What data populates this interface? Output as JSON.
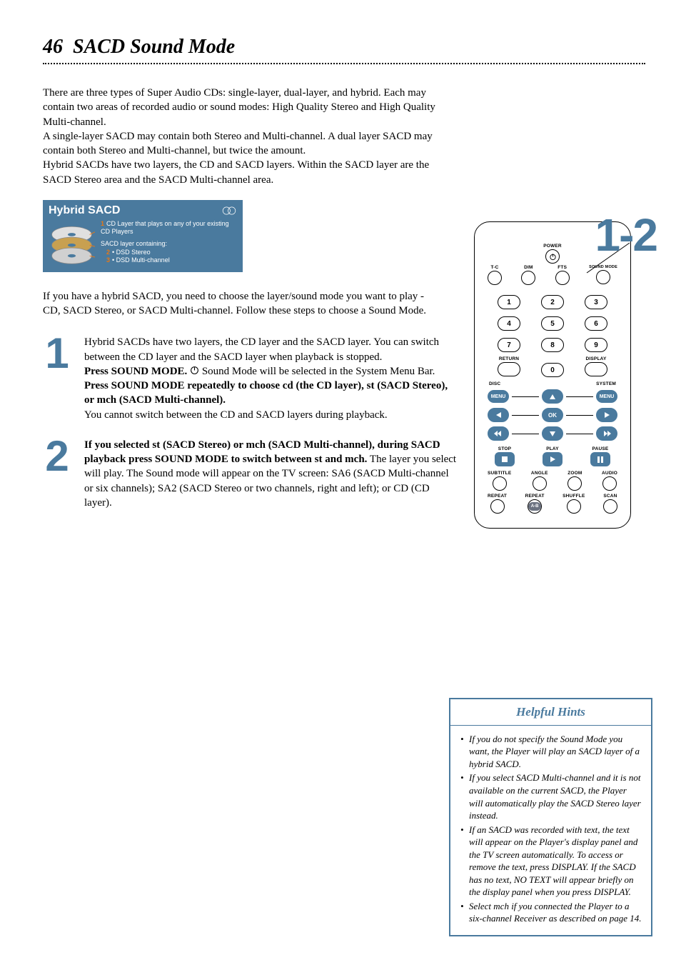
{
  "page": {
    "number": "46",
    "title": "SACD Sound Mode"
  },
  "intro": {
    "p1": "There are three types of Super Audio CDs: single-layer, dual-layer, and hybrid. Each may contain two areas of recorded audio or sound modes: High Quality Stereo and High Quality Multi-channel.",
    "p2": "A single-layer SACD may contain both Stereo and Multi-channel. A dual layer SACD may contain both Stereo and Multi-channel, but twice the amount.",
    "p3": "Hybrid SACDs have two layers, the CD and SACD layers. Within the SACD layer are the SACD Stereo area and the SACD Multi-channel area."
  },
  "hybrid_box": {
    "title": "Hybrid SACD",
    "line1_num": "1",
    "line1": "CD Layer that plays on any of your existing CD Players",
    "line2": "SACD layer containing:",
    "line2_num_a": "2",
    "sub_a": "• DSD Stereo",
    "line2_num_b": "3",
    "sub_b": "• DSD Multi-channel",
    "bg_color": "#4a7a9e",
    "text_color": "#ffffff",
    "accent_color": "#e67817"
  },
  "after_box": "If you have a hybrid SACD, you need to choose the layer/sound mode you want to play - CD, SACD Stereo, or SACD Multi-channel. Follow these steps to choose a Sound Mode.",
  "steps": [
    {
      "num": "1",
      "body_html": "Hybrid SACDs have two layers, the CD layer and the SACD layer. You can switch between the CD layer and the SACD layer when playback is stopped.<br><b>Press SOUND MODE.</b> <svg class='power-icon-inline' viewBox='0 0 24 24'><circle cx='12' cy='12' r='9' fill='none' stroke='#000' stroke-width='2'/><line x1='12' y1='4' x2='12' y2='12' stroke='#000' stroke-width='2'/></svg> Sound Mode will be selected in the System Menu Bar. <b>Press SOUND MODE repeatedly to choose cd (the CD layer), st (SACD Stereo), or mch (SACD Multi-channel).</b><br>You cannot switch between the CD and SACD layers during playback."
    },
    {
      "num": "2",
      "body_html": "<b>If you selected st (SACD Stereo) or mch (SACD Multi-channel), during SACD playback press SOUND MODE to switch between st and mch.</b> The layer you select will play. The Sound mode will appear on the TV screen: SA6 (SACD Multi-channel or six channels); SA2 (SACD Stereo or two channels, right and left); or CD (CD layer)."
    }
  ],
  "remote": {
    "callout": "1-2",
    "top_labels": [
      "T-C",
      "DIM",
      "FTS",
      "SOUND MODE"
    ],
    "power_label": "POWER",
    "keypad": [
      "1",
      "2",
      "3",
      "4",
      "5",
      "6",
      "7",
      "8",
      "9",
      "0"
    ],
    "return_label": "RETURN",
    "display_label": "DISPLAY",
    "disc_label": "DISC",
    "system_label": "SYSTEM",
    "menu_label": "MENU",
    "ok_label": "OK",
    "stop_label": "STOP",
    "play_label": "PLAY",
    "pause_label": "PAUSE",
    "bottom_row1": [
      "SUBTITLE",
      "ANGLE",
      "ZOOM",
      "AUDIO"
    ],
    "bottom_row2": [
      "REPEAT",
      "REPEAT",
      "SHUFFLE",
      "SCAN"
    ],
    "ab_label": "A-B",
    "accent_color": "#4a7a9e"
  },
  "hints": {
    "title": "Helpful Hints",
    "items": [
      "If you do not specify the Sound Mode you want, the Player will play an SACD layer of a hybrid SACD.",
      "If you select SACD Multi-channel and it is not available on the current SACD, the Player will automatically play the SACD Stereo layer instead.",
      "If an SACD was recorded with text, the text will appear on the Player's display panel and the TV screen automatically. To access or remove the text, press DISPLAY. If the SACD has no text, NO TEXT will appear briefly on the display panel when you press DISPLAY.",
      "Select mch if you connected the Player to a six-channel Receiver as described on page 14."
    ],
    "border_color": "#4a7a9e",
    "title_color": "#4a7a9e"
  }
}
